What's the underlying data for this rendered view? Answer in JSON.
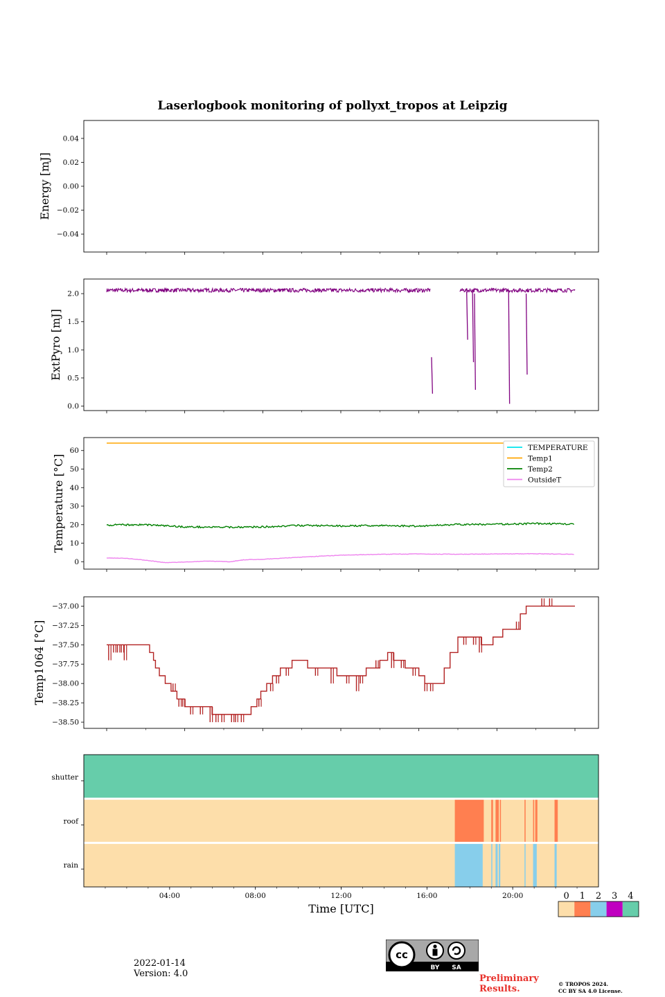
{
  "figure": {
    "title": "Laserlogbook monitoring of pollyxt_tropos at Leipzig",
    "date": "2022-01-14",
    "version": "Version: 4.0",
    "preliminary": [
      "Preliminary",
      "Results."
    ],
    "copyright": [
      "© TROPOS 2024.",
      "CC BY SA 4.0 License."
    ],
    "cc_badge": {
      "by": "BY",
      "sa": "SA",
      "cc": "cc"
    }
  },
  "chart_data": [
    {
      "id": "energy",
      "type": "line",
      "ylabel": "Energy [mJ]",
      "ylim": [
        -0.055,
        0.055
      ],
      "yticks": [
        0.04,
        0.02,
        0.0,
        -0.02,
        -0.04
      ],
      "ytick_labels": [
        "0.04",
        "0.02",
        "0.00",
        "−0.02",
        "−0.04"
      ],
      "series": []
    },
    {
      "id": "extpyro",
      "type": "line",
      "ylabel": "ExtPyro [mJ]",
      "ylim": [
        -0.08,
        2.26
      ],
      "yticks": [
        2.0,
        1.5,
        1.0,
        0.5,
        0.0
      ],
      "ytick_labels": [
        "2.0",
        "1.5",
        "1.0",
        "0.5",
        "0.0"
      ],
      "color": "#800080",
      "baseline": 2.06,
      "segments": [
        [
          0.0,
          16.6
        ],
        [
          18.1,
          24.0
        ]
      ],
      "dips": [
        [
          16.65,
          0.87,
          0.22
        ],
        [
          18.45,
          2.04,
          1.18
        ],
        [
          18.75,
          2.04,
          0.78
        ],
        [
          18.85,
          2.0,
          0.29
        ],
        [
          20.6,
          2.06,
          0.04
        ],
        [
          21.5,
          2.0,
          0.56
        ]
      ]
    },
    {
      "id": "temperature",
      "type": "line",
      "ylabel": "Temperature [°C]",
      "ylim": [
        -4,
        67
      ],
      "yticks": [
        60,
        50,
        40,
        30,
        20,
        10,
        0
      ],
      "ytick_labels": [
        "60",
        "50",
        "40",
        "30",
        "20",
        "10",
        "0"
      ],
      "legend": "top-right",
      "series": [
        {
          "name": "TEMPERATURE",
          "color": "#00e5ee",
          "values": []
        },
        {
          "name": "Temp1",
          "color": "#ffa500",
          "values": [
            [
              0,
              64
            ],
            [
              24,
              64
            ]
          ]
        },
        {
          "name": "Temp2",
          "color": "#008000",
          "values": [
            [
              0,
              19.8
            ],
            [
              2,
              20
            ],
            [
              4,
              18.8
            ],
            [
              6,
              18.6
            ],
            [
              8,
              18.8
            ],
            [
              10,
              19.6
            ],
            [
              12,
              19.3
            ],
            [
              14,
              19.5
            ],
            [
              16,
              19.2
            ],
            [
              17.5,
              20
            ],
            [
              20,
              20.2
            ],
            [
              22,
              20.6
            ],
            [
              24,
              20.3
            ]
          ]
        },
        {
          "name": "OutsideT",
          "color": "#ee82ee",
          "values": [
            [
              0,
              2
            ],
            [
              1,
              1.8
            ],
            [
              2,
              0.8
            ],
            [
              3,
              -0.5
            ],
            [
              4,
              -0.2
            ],
            [
              5,
              0.3
            ],
            [
              6,
              0.2
            ],
            [
              6.3,
              -0.1
            ],
            [
              7,
              1
            ],
            [
              8,
              1.3
            ],
            [
              10,
              2.5
            ],
            [
              12,
              3.5
            ],
            [
              14,
              4
            ],
            [
              16,
              4.2
            ],
            [
              18,
              4
            ],
            [
              20,
              4.2
            ],
            [
              22,
              4.3
            ],
            [
              24,
              4
            ]
          ]
        }
      ]
    },
    {
      "id": "temp1064",
      "type": "line",
      "ylabel": "Temp1064 [°C]",
      "ylim": [
        -38.58,
        -36.88
      ],
      "yticks": [
        -37.0,
        -37.25,
        -37.5,
        -37.75,
        -38.0,
        -38.25,
        -38.5
      ],
      "ytick_labels": [
        "−37.00",
        "−37.25",
        "−37.50",
        "−37.75",
        "−38.00",
        "−38.25",
        "−38.50"
      ],
      "color": "#b22222",
      "steps": [
        [
          0.0,
          -37.5
        ],
        [
          1.0,
          -37.5
        ],
        [
          2.0,
          -37.5
        ],
        [
          2.2,
          -37.6
        ],
        [
          2.4,
          -37.7
        ],
        [
          2.5,
          -37.8
        ],
        [
          2.7,
          -37.9
        ],
        [
          3.0,
          -38.0
        ],
        [
          3.3,
          -38.1
        ],
        [
          3.6,
          -38.2
        ],
        [
          4.0,
          -38.3
        ],
        [
          4.6,
          -38.3
        ],
        [
          5.4,
          -38.4
        ],
        [
          6.2,
          -38.4
        ],
        [
          7.4,
          -38.3
        ],
        [
          7.7,
          -38.2
        ],
        [
          7.9,
          -38.1
        ],
        [
          8.2,
          -38.0
        ],
        [
          8.5,
          -37.9
        ],
        [
          8.9,
          -37.8
        ],
        [
          9.5,
          -37.7
        ],
        [
          10.3,
          -37.8
        ],
        [
          11.1,
          -37.8
        ],
        [
          11.8,
          -37.9
        ],
        [
          12.5,
          -37.9
        ],
        [
          13.3,
          -37.8
        ],
        [
          14.0,
          -37.7
        ],
        [
          14.4,
          -37.6
        ],
        [
          14.7,
          -37.7
        ],
        [
          15.3,
          -37.8
        ],
        [
          16.0,
          -37.9
        ],
        [
          16.3,
          -38.0
        ],
        [
          17.3,
          -37.8
        ],
        [
          17.6,
          -37.6
        ],
        [
          18.0,
          -37.4
        ],
        [
          19.2,
          -37.5
        ],
        [
          19.8,
          -37.4
        ],
        [
          20.3,
          -37.3
        ],
        [
          21.2,
          -37.1
        ],
        [
          21.5,
          -37.0
        ],
        [
          22.5,
          -37.0
        ],
        [
          24.0,
          -37.0
        ]
      ],
      "spikes": [
        [
          0.1,
          -37.7
        ],
        [
          0.35,
          -37.6
        ],
        [
          0.55,
          -37.6
        ],
        [
          0.75,
          -37.6
        ],
        [
          0.9,
          -37.7
        ],
        [
          2.9,
          -37.9
        ],
        [
          3.4,
          -38.0
        ],
        [
          3.7,
          -38.3
        ],
        [
          3.9,
          -38.3
        ],
        [
          4.3,
          -38.4
        ],
        [
          4.8,
          -38.4
        ],
        [
          5.3,
          -38.5
        ],
        [
          5.6,
          -38.5
        ],
        [
          5.9,
          -38.5
        ],
        [
          6.4,
          -38.5
        ],
        [
          6.6,
          -38.5
        ],
        [
          6.9,
          -38.5
        ],
        [
          7.2,
          -38.4
        ],
        [
          7.8,
          -38.3
        ],
        [
          8.4,
          -38.1
        ],
        [
          8.7,
          -38.0
        ],
        [
          9.2,
          -37.9
        ],
        [
          10.7,
          -37.9
        ],
        [
          11.5,
          -38.0
        ],
        [
          12.3,
          -38.0
        ],
        [
          12.8,
          -38.1
        ],
        [
          13.0,
          -38.0
        ],
        [
          13.8,
          -37.7
        ],
        [
          14.6,
          -37.8
        ],
        [
          15.1,
          -37.8
        ],
        [
          15.7,
          -37.9
        ],
        [
          16.3,
          -38.1
        ],
        [
          16.6,
          -38.1
        ],
        [
          17.1,
          -38.0
        ],
        [
          18.3,
          -37.5
        ],
        [
          18.8,
          -37.5
        ],
        [
          19.1,
          -37.6
        ],
        [
          19.6,
          -37.5
        ],
        [
          20.1,
          -37.4
        ],
        [
          21.0,
          -37.2
        ],
        [
          22.3,
          -36.9
        ],
        [
          22.7,
          -36.9
        ]
      ]
    },
    {
      "id": "status",
      "type": "heatmap",
      "xlabel": "Time [UTC]",
      "rows": [
        "shutter",
        "roof",
        "rain"
      ],
      "xtick_labels": [
        "04:00",
        "08:00",
        "12:00",
        "16:00",
        "20:00"
      ],
      "xticks": [
        4,
        8,
        12,
        16,
        20
      ],
      "xlim": [
        0,
        24
      ],
      "colorbar": {
        "labels": [
          "0",
          "1",
          "2",
          "3",
          "4"
        ],
        "colors": [
          "#fddeaa",
          "#ff7f50",
          "#87ceeb",
          "#c000c0",
          "#66cdaa"
        ]
      },
      "default_state": {
        "shutter": 4,
        "roof": 0,
        "rain": 0
      },
      "events": {
        "roof": [
          [
            17.3,
            18.65,
            1
          ],
          [
            19.0,
            19.08,
            1
          ],
          [
            19.2,
            19.35,
            1
          ],
          [
            19.4,
            19.45,
            1
          ],
          [
            20.55,
            20.6,
            1
          ],
          [
            20.95,
            21.0,
            1
          ],
          [
            21.05,
            21.15,
            1
          ],
          [
            21.95,
            22.1,
            1
          ]
        ],
        "rain": [
          [
            17.3,
            18.6,
            2
          ],
          [
            19.0,
            19.04,
            2
          ],
          [
            19.2,
            19.3,
            2
          ],
          [
            19.35,
            19.42,
            2
          ],
          [
            20.55,
            20.58,
            2
          ],
          [
            20.95,
            21.12,
            2
          ],
          [
            21.95,
            22.05,
            2
          ]
        ]
      }
    }
  ]
}
